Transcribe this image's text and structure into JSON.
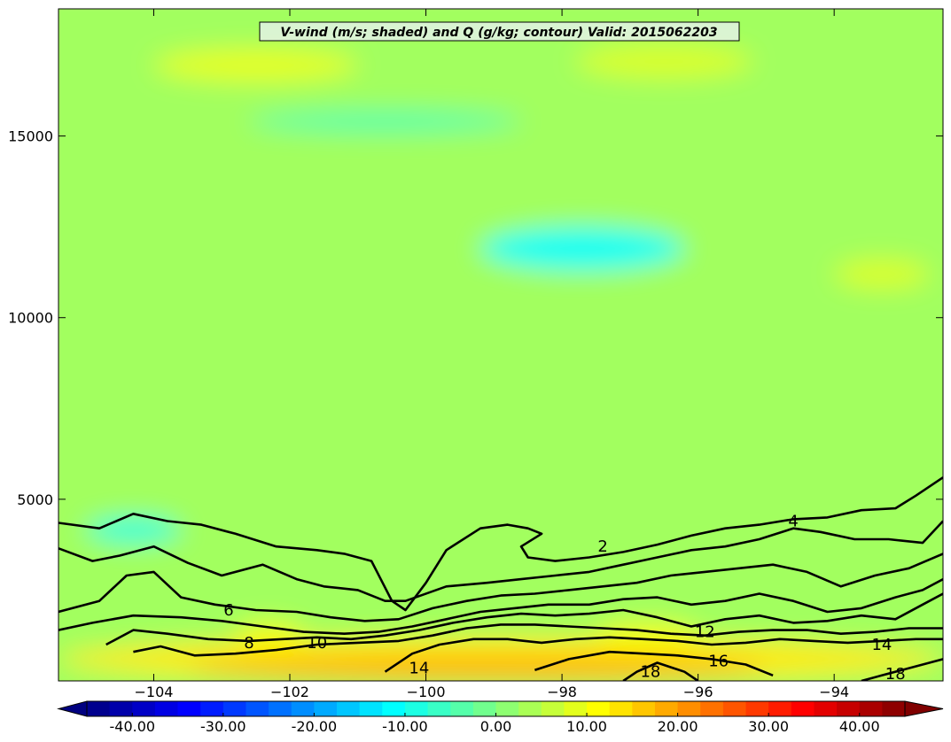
{
  "chart_data": {
    "type": "contour",
    "title": "V-wind (m/s; shaded) and Q (g/kg; contour) Valid: 2015062203",
    "xlim": [
      -105.4,
      -92.4
    ],
    "ylim": [
      0,
      18500
    ],
    "x_ticks": [
      -104,
      -102,
      -100,
      -98,
      -96,
      -94
    ],
    "x_tick_labels": [
      "−104",
      "−102",
      "−100",
      "−98",
      "−96",
      "−94"
    ],
    "y_ticks": [
      5000,
      10000,
      15000
    ],
    "y_tick_labels": [
      "5000",
      "10000",
      "15000"
    ],
    "shaded_field": {
      "name": "V-wind",
      "units": "m/s",
      "colorbar_range": [
        -45,
        45
      ],
      "colorbar_ticks": [
        -40,
        -30,
        -20,
        -10,
        0,
        10,
        20,
        30,
        40
      ],
      "colorbar_tick_labels": [
        "-40.00",
        "-30.00",
        "-20.00",
        "-10.00",
        "0.00",
        "10.00",
        "20.00",
        "30.00",
        "40.00"
      ],
      "colormap": "jet",
      "extend": "both",
      "regions": [
        {
          "x": [
            -105.4,
            -92.4
          ],
          "y": [
            0,
            18500
          ],
          "v": 3
        },
        {
          "x": [
            -105.4,
            -92.4
          ],
          "y": [
            0,
            1200
          ],
          "v": 13
        },
        {
          "x": [
            -103.5,
            -95.0
          ],
          "y": [
            0,
            700
          ],
          "v": 18
        },
        {
          "x": [
            -99.2,
            -96.2
          ],
          "y": [
            11300,
            12500
          ],
          "v": -10
        },
        {
          "x": [
            -105.0,
            -103.6
          ],
          "y": [
            3800,
            4500
          ],
          "v": -8
        },
        {
          "x": [
            -102.8,
            -101.8
          ],
          "y": [
            1000,
            1600
          ],
          "v": 10
        },
        {
          "x": [
            -97.5,
            -96.0
          ],
          "y": [
            1000,
            1600
          ],
          "v": 10
        },
        {
          "x": [
            -104.0,
            -101.0
          ],
          "y": [
            16500,
            17400
          ],
          "v": 9
        },
        {
          "x": [
            -97.8,
            -95.2
          ],
          "y": [
            16600,
            17500
          ],
          "v": 8
        },
        {
          "x": [
            -94.0,
            -92.6
          ],
          "y": [
            10800,
            11600
          ],
          "v": 8
        },
        {
          "x": [
            -102.6,
            -98.6
          ],
          "y": [
            15100,
            15700
          ],
          "v": -4
        }
      ]
    },
    "contour_field": {
      "name": "Q",
      "units": "g/kg",
      "levels": [
        2,
        4,
        6,
        8,
        10,
        12,
        14,
        16,
        18
      ],
      "lines": [
        {
          "level": 2,
          "points": [
            [
              -105.4,
              4350
            ],
            [
              -104.8,
              4200
            ],
            [
              -104.3,
              4600
            ],
            [
              -103.8,
              4400
            ],
            [
              -103.3,
              4300
            ],
            [
              -102.8,
              4050
            ],
            [
              -102.2,
              3700
            ],
            [
              -101.6,
              3600
            ],
            [
              -101.2,
              3500
            ],
            [
              -100.8,
              3300
            ],
            [
              -100.5,
              2200
            ],
            [
              -100.3,
              1950
            ],
            [
              -100.0,
              2700
            ],
            [
              -99.7,
              3600
            ],
            [
              -99.2,
              4200
            ],
            [
              -98.8,
              4300
            ],
            [
              -98.5,
              4200
            ],
            [
              -98.3,
              4050
            ],
            [
              -98.6,
              3700
            ],
            [
              -98.5,
              3400
            ],
            [
              -98.1,
              3300
            ],
            [
              -97.6,
              3400
            ],
            [
              -97.1,
              3550
            ],
            [
              -96.6,
              3750
            ],
            [
              -96.1,
              4000
            ],
            [
              -95.6,
              4200
            ],
            [
              -95.1,
              4300
            ],
            [
              -94.6,
              4450
            ],
            [
              -94.1,
              4500
            ],
            [
              -93.6,
              4700
            ],
            [
              -93.1,
              4750
            ],
            [
              -92.8,
              5100
            ],
            [
              -92.4,
              5600
            ]
          ]
        },
        {
          "level": 4,
          "points": [
            [
              -105.4,
              3650
            ],
            [
              -104.9,
              3300
            ],
            [
              -104.5,
              3450
            ],
            [
              -104.0,
              3700
            ],
            [
              -103.5,
              3250
            ],
            [
              -103.0,
              2900
            ],
            [
              -102.4,
              3200
            ],
            [
              -101.9,
              2800
            ],
            [
              -101.5,
              2600
            ],
            [
              -101.0,
              2500
            ],
            [
              -100.6,
              2200
            ],
            [
              -100.3,
              2200
            ],
            [
              -99.7,
              2600
            ],
            [
              -99.1,
              2700
            ],
            [
              -98.6,
              2800
            ],
            [
              -98.1,
              2900
            ],
            [
              -97.6,
              3000
            ],
            [
              -97.1,
              3200
            ],
            [
              -96.6,
              3400
            ],
            [
              -96.1,
              3600
            ],
            [
              -95.6,
              3700
            ],
            [
              -95.1,
              3900
            ],
            [
              -94.6,
              4200
            ],
            [
              -94.2,
              4100
            ],
            [
              -93.7,
              3900
            ],
            [
              -93.2,
              3900
            ],
            [
              -92.7,
              3800
            ],
            [
              -92.4,
              4400
            ]
          ]
        },
        {
          "level": 6,
          "points": [
            [
              -105.4,
              1900
            ],
            [
              -104.8,
              2200
            ],
            [
              -104.4,
              2900
            ],
            [
              -104.0,
              3000
            ],
            [
              -103.6,
              2300
            ],
            [
              -103.1,
              2100
            ],
            [
              -102.5,
              1950
            ],
            [
              -101.9,
              1900
            ],
            [
              -101.4,
              1750
            ],
            [
              -100.9,
              1650
            ],
            [
              -100.4,
              1700
            ],
            [
              -99.9,
              2000
            ],
            [
              -99.4,
              2200
            ],
            [
              -98.9,
              2350
            ],
            [
              -98.4,
              2400
            ],
            [
              -97.9,
              2500
            ],
            [
              -97.4,
              2600
            ],
            [
              -96.9,
              2700
            ],
            [
              -96.4,
              2900
            ],
            [
              -95.9,
              3000
            ],
            [
              -95.4,
              3100
            ],
            [
              -94.9,
              3200
            ],
            [
              -94.4,
              3000
            ],
            [
              -93.9,
              2600
            ],
            [
              -93.4,
              2900
            ],
            [
              -92.9,
              3100
            ],
            [
              -92.4,
              3500
            ]
          ]
        },
        {
          "level": 8,
          "points": [
            [
              -105.4,
              1400
            ],
            [
              -104.9,
              1600
            ],
            [
              -104.3,
              1800
            ],
            [
              -103.6,
              1750
            ],
            [
              -103.0,
              1650
            ],
            [
              -102.4,
              1500
            ],
            [
              -101.8,
              1350
            ],
            [
              -101.2,
              1300
            ],
            [
              -100.7,
              1350
            ],
            [
              -100.2,
              1500
            ],
            [
              -99.7,
              1700
            ],
            [
              -99.2,
              1900
            ],
            [
              -98.7,
              2000
            ],
            [
              -98.2,
              2100
            ],
            [
              -97.6,
              2100
            ],
            [
              -97.1,
              2250
            ],
            [
              -96.6,
              2300
            ],
            [
              -96.1,
              2100
            ],
            [
              -95.6,
              2200
            ],
            [
              -95.1,
              2400
            ],
            [
              -94.6,
              2200
            ],
            [
              -94.1,
              1900
            ],
            [
              -93.6,
              2000
            ],
            [
              -93.1,
              2300
            ],
            [
              -92.7,
              2500
            ],
            [
              -92.4,
              2800
            ]
          ]
        },
        {
          "level": 10,
          "points": [
            [
              -104.7,
              1000
            ],
            [
              -104.3,
              1400
            ],
            [
              -103.8,
              1300
            ],
            [
              -103.2,
              1150
            ],
            [
              -102.6,
              1100
            ],
            [
              -102.1,
              1150
            ],
            [
              -101.6,
              1200
            ],
            [
              -101.1,
              1150
            ],
            [
              -100.6,
              1250
            ],
            [
              -100.1,
              1400
            ],
            [
              -99.6,
              1600
            ],
            [
              -99.1,
              1750
            ],
            [
              -98.6,
              1850
            ],
            [
              -98.1,
              1800
            ],
            [
              -97.6,
              1850
            ],
            [
              -97.1,
              1950
            ],
            [
              -96.6,
              1750
            ],
            [
              -96.1,
              1500
            ],
            [
              -95.6,
              1700
            ],
            [
              -95.1,
              1800
            ],
            [
              -94.6,
              1600
            ],
            [
              -94.1,
              1650
            ],
            [
              -93.6,
              1800
            ],
            [
              -93.1,
              1700
            ],
            [
              -92.7,
              2100
            ],
            [
              -92.4,
              2400
            ]
          ]
        },
        {
          "level": 12,
          "points": [
            [
              -104.3,
              800
            ],
            [
              -103.9,
              950
            ],
            [
              -103.4,
              700
            ],
            [
              -102.8,
              750
            ],
            [
              -102.2,
              850
            ],
            [
              -101.6,
              1000
            ],
            [
              -101.0,
              1050
            ],
            [
              -100.4,
              1100
            ],
            [
              -99.9,
              1250
            ],
            [
              -99.4,
              1450
            ],
            [
              -98.9,
              1550
            ],
            [
              -98.4,
              1550
            ],
            [
              -97.9,
              1500
            ],
            [
              -97.4,
              1450
            ],
            [
              -96.9,
              1400
            ],
            [
              -96.4,
              1300
            ],
            [
              -95.9,
              1250
            ],
            [
              -95.4,
              1350
            ],
            [
              -94.9,
              1400
            ],
            [
              -94.4,
              1400
            ],
            [
              -93.9,
              1300
            ],
            [
              -93.4,
              1350
            ],
            [
              -92.9,
              1450
            ],
            [
              -92.4,
              1450
            ]
          ]
        },
        {
          "level": 14,
          "points": [
            [
              -100.6,
              250
            ],
            [
              -100.2,
              750
            ],
            [
              -99.8,
              1000
            ],
            [
              -99.3,
              1150
            ],
            [
              -98.8,
              1150
            ],
            [
              -98.3,
              1050
            ],
            [
              -97.8,
              1150
            ],
            [
              -97.3,
              1200
            ],
            [
              -96.8,
              1150
            ],
            [
              -96.3,
              1100
            ],
            [
              -95.8,
              1000
            ],
            [
              -95.3,
              1050
            ],
            [
              -94.8,
              1150
            ],
            [
              -94.3,
              1100
            ],
            [
              -93.8,
              1050
            ],
            [
              -93.3,
              1100
            ],
            [
              -92.8,
              1150
            ],
            [
              -92.4,
              1150
            ]
          ]
        },
        {
          "level": 16,
          "points": [
            [
              -98.4,
              300
            ],
            [
              -97.9,
              600
            ],
            [
              -97.3,
              800
            ],
            [
              -96.8,
              750
            ],
            [
              -96.3,
              700
            ],
            [
              -95.8,
              600
            ],
            [
              -95.3,
              450
            ],
            [
              -94.9,
              150
            ]
          ]
        },
        {
          "level": 18,
          "points": [
            [
              -97.1,
              0
            ],
            [
              -96.9,
              250
            ],
            [
              -96.6,
              500
            ],
            [
              -96.2,
              250
            ],
            [
              -96.0,
              0
            ]
          ]
        },
        {
          "level": 18,
          "points": [
            [
              -93.6,
              0
            ],
            [
              -93.3,
              150
            ],
            [
              -92.9,
              350
            ],
            [
              -92.6,
              500
            ],
            [
              -92.4,
              600
            ]
          ]
        }
      ],
      "labels": [
        {
          "level": 2,
          "x": -97.4,
          "y": 3700
        },
        {
          "level": 4,
          "x": -94.6,
          "y": 4400
        },
        {
          "level": 6,
          "x": -102.9,
          "y": 1950
        },
        {
          "level": 8,
          "x": -102.6,
          "y": 1050
        },
        {
          "level": 10,
          "x": -101.6,
          "y": 1050
        },
        {
          "level": 12,
          "x": -95.9,
          "y": 1350
        },
        {
          "level": 14,
          "x": -100.1,
          "y": 350
        },
        {
          "level": 14,
          "x": -93.3,
          "y": 1000
        },
        {
          "level": 16,
          "x": -95.7,
          "y": 550
        },
        {
          "level": 18,
          "x": -96.7,
          "y": 250
        },
        {
          "level": 18,
          "x": -93.1,
          "y": 200
        }
      ]
    }
  }
}
